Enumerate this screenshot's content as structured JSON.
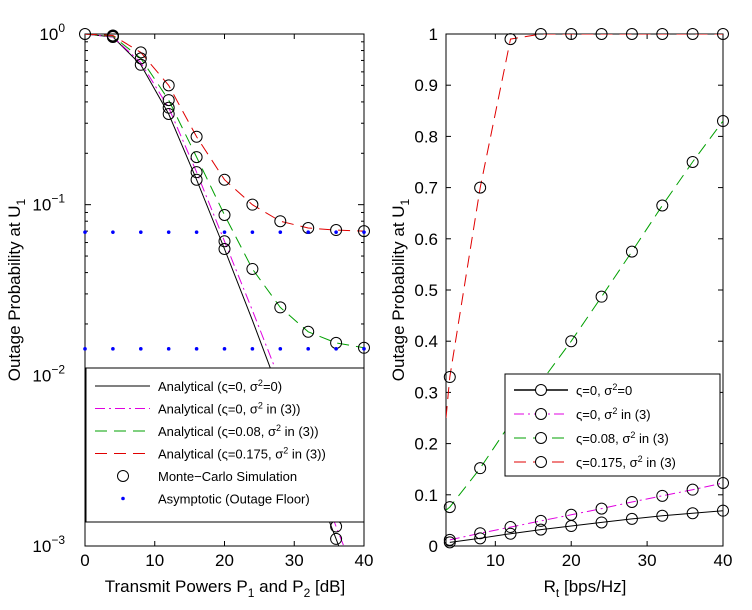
{
  "chart_data": [
    {
      "type": "line",
      "yscale": "log",
      "xlim": [
        0,
        40
      ],
      "ylim": [
        0.001,
        1
      ],
      "xticks": [
        0,
        10,
        20,
        30,
        40
      ],
      "yticks": [
        {
          "value": 1,
          "mantissa": "10",
          "exp": "0"
        },
        {
          "value": 0.1,
          "mantissa": "10",
          "exp": "−1"
        },
        {
          "value": 0.01,
          "mantissa": "10",
          "exp": "−2"
        },
        {
          "value": 0.001,
          "mantissa": "10",
          "exp": "−3"
        }
      ],
      "xlabel": {
        "main": "Transmit Powers P",
        "sub1": "1",
        "mid": " and P",
        "sub2": "2",
        "end": " [dB]"
      },
      "ylabel": {
        "main": "Outage Probability at U",
        "sub": "1"
      },
      "legend_position": "bottom-left",
      "series": [
        {
          "name": "Analytical (ς=0, σ²=0)",
          "label_main": "Analytical (ς=0, σ",
          "label_sup": "2",
          "label_end": "=0)",
          "color": "#000000",
          "dash": "none",
          "x": [
            0,
            4,
            8,
            12,
            16,
            20,
            24,
            28,
            32,
            36,
            40
          ],
          "y": [
            1.0,
            0.96,
            0.66,
            0.34,
            0.14,
            0.055,
            0.021,
            0.0077,
            0.0029,
            0.0011,
            0.0004
          ]
        },
        {
          "name": "Analytical (ς=0, σ² in (3))",
          "label_main": "Analytical (ς=0, σ",
          "label_sup": "2",
          "label_end": " in (3))",
          "color": "#e000e0",
          "dash": "10,4,2,4",
          "x": [
            0,
            4,
            8,
            12,
            16,
            20,
            24,
            28,
            32,
            36,
            40
          ],
          "y": [
            1.0,
            0.96,
            0.68,
            0.37,
            0.155,
            0.061,
            0.024,
            0.0092,
            0.0035,
            0.0013,
            0.0005
          ]
        },
        {
          "name": "Analytical (ς=0.08, σ² in (3))",
          "label_main": "Analytical (ς=0.08, σ",
          "label_sup": "2",
          "label_end": " in (3))",
          "color": "#00a000",
          "dash": "12,7",
          "x": [
            0,
            4,
            8,
            12,
            16,
            20,
            24,
            28,
            32,
            36,
            40
          ],
          "y": [
            1.0,
            0.97,
            0.72,
            0.41,
            0.19,
            0.087,
            0.042,
            0.025,
            0.018,
            0.0155,
            0.0145
          ]
        },
        {
          "name": "Analytical (ς=0.175, σ² in (3))",
          "label_main": "Analytical (ς=0.175, σ",
          "label_sup": "2",
          "label_end": " in (3))",
          "color": "#e00000",
          "dash": "12,7",
          "x": [
            0,
            4,
            8,
            12,
            16,
            20,
            24,
            28,
            32,
            36,
            40
          ],
          "y": [
            1.0,
            0.98,
            0.78,
            0.5,
            0.25,
            0.14,
            0.1,
            0.08,
            0.073,
            0.071,
            0.07
          ]
        },
        {
          "name": "Monte−Carlo Simulation",
          "type": "markers",
          "marker": "open-circle",
          "color": "#000000",
          "points": [
            [
              0,
              1.0
            ],
            [
              4,
              0.96
            ],
            [
              4,
              0.97
            ],
            [
              4,
              0.98
            ],
            [
              8,
              0.66
            ],
            [
              8,
              0.72
            ],
            [
              8,
              0.78
            ],
            [
              12,
              0.34
            ],
            [
              12,
              0.37
            ],
            [
              12,
              0.41
            ],
            [
              12,
              0.5
            ],
            [
              16,
              0.14
            ],
            [
              16,
              0.155
            ],
            [
              16,
              0.19
            ],
            [
              16,
              0.25
            ],
            [
              20,
              0.055
            ],
            [
              20,
              0.061
            ],
            [
              20,
              0.087
            ],
            [
              20,
              0.14
            ],
            [
              24,
              0.042
            ],
            [
              24,
              0.1
            ],
            [
              28,
              0.025
            ],
            [
              28,
              0.08
            ],
            [
              32,
              0.018
            ],
            [
              32,
              0.073
            ],
            [
              36,
              0.0155
            ],
            [
              36,
              0.071
            ],
            [
              36,
              0.0013
            ],
            [
              36,
              0.0011
            ],
            [
              40,
              0.0145
            ],
            [
              40,
              0.07
            ]
          ]
        },
        {
          "name": "Asymptotic (Outage Floor)",
          "type": "markers",
          "marker": "dot",
          "color": "#0000ff",
          "x": [
            0,
            4,
            8,
            12,
            16,
            20,
            24,
            28,
            32,
            36,
            40
          ],
          "levels": [
            0.069,
            0.0143
          ]
        }
      ]
    },
    {
      "type": "line",
      "yscale": "linear",
      "xlim": [
        3.5,
        40
      ],
      "ylim": [
        0,
        1
      ],
      "xticks": [
        10,
        20,
        30,
        40
      ],
      "yticks": [
        0,
        0.1,
        0.2,
        0.3,
        0.4,
        0.5,
        0.6,
        0.7,
        0.8,
        0.9,
        1
      ],
      "xlabel": {
        "main": "R",
        "sub": "t",
        "end": " [bps/Hz]"
      },
      "ylabel": {
        "main": "Outage Probability at U",
        "sub": "1"
      },
      "legend_position": "bottom-right",
      "series": [
        {
          "name": "ς=0, σ²=0",
          "label_main": "ς=0, σ",
          "label_sup": "2",
          "label_end": "=0",
          "color": "#000000",
          "dash": "none",
          "x": [
            4,
            8,
            12,
            16,
            20,
            24,
            28,
            32,
            36,
            40
          ],
          "y": [
            0.007,
            0.015,
            0.024,
            0.032,
            0.039,
            0.046,
            0.053,
            0.059,
            0.064,
            0.069
          ]
        },
        {
          "name": "ς=0, σ² in (3)",
          "label_main": "ς=0, σ",
          "label_sup": "2",
          "label_end": " in (3)",
          "color": "#e000e0",
          "dash": "10,4,2,4",
          "x": [
            4,
            8,
            12,
            16,
            20,
            24,
            28,
            32,
            36,
            40
          ],
          "y": [
            0.012,
            0.025,
            0.037,
            0.049,
            0.061,
            0.073,
            0.086,
            0.098,
            0.11,
            0.123
          ]
        },
        {
          "name": "ς=0.08, σ² in (3)",
          "label_main": "ς=0.08, σ",
          "label_sup": "2",
          "label_end": " in (3)",
          "color": "#00a000",
          "dash": "12,7",
          "x": [
            3.5,
            4,
            8,
            12,
            16,
            20,
            24,
            28,
            32,
            36,
            40
          ],
          "y": [
            0.07,
            0.076,
            0.152,
            0.24,
            0.32,
            0.4,
            0.487,
            0.575,
            0.665,
            0.75,
            0.83
          ]
        },
        {
          "name": "ς=0.175, σ² in (3)",
          "label_main": "ς=0.175, σ",
          "label_sup": "2",
          "label_end": " in (3)",
          "color": "#e00000",
          "dash": "12,7",
          "x": [
            3.5,
            4,
            8,
            12,
            16,
            20,
            24,
            28,
            32,
            36,
            40
          ],
          "y": [
            0.25,
            0.33,
            0.7,
            0.99,
            1.0,
            1.0,
            1.0,
            1.0,
            1.0,
            1.0,
            1.0
          ]
        }
      ],
      "markers": {
        "marker": "open-circle",
        "color": "#000000",
        "x": [
          4,
          8,
          12,
          16,
          20,
          24,
          28,
          32,
          36,
          40
        ]
      }
    }
  ]
}
